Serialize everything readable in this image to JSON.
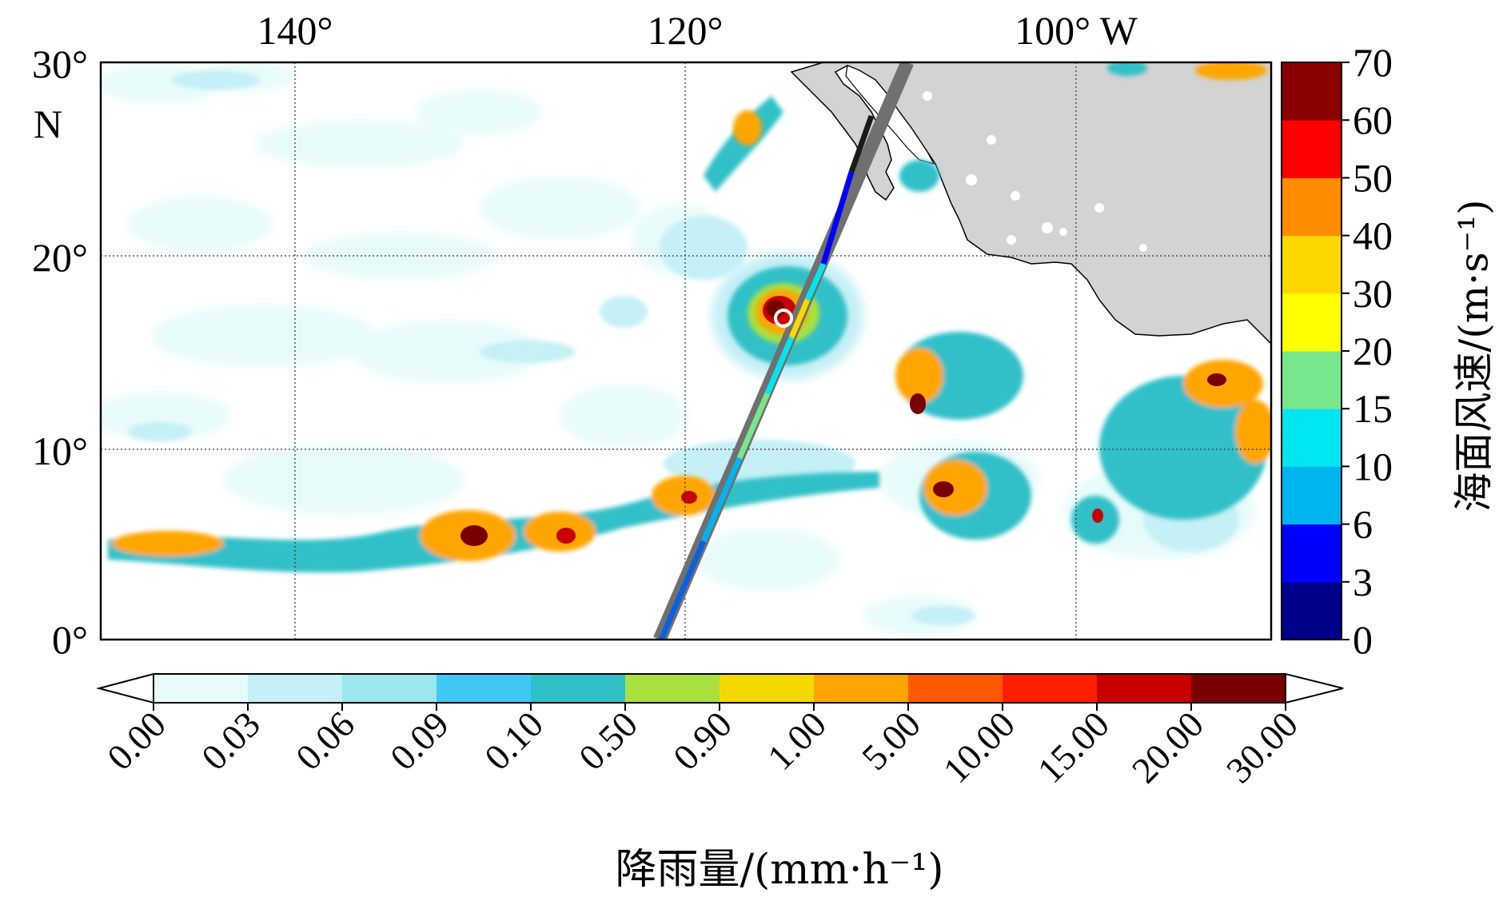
{
  "map": {
    "lon_labels": [
      "140°",
      "120°",
      "100° W"
    ],
    "lat_labels": [
      "30°",
      "N",
      "20°",
      "10°",
      "0°"
    ],
    "land_color": "#d3d3d3",
    "ocean_color": "#ffffff",
    "track_color": "#707070",
    "storm_center_marker": "white-circle"
  },
  "wind_colorbar": {
    "ticks": [
      "70",
      "60",
      "50",
      "40",
      "30",
      "20",
      "15",
      "10",
      "6",
      "3",
      "0"
    ],
    "colors": [
      "#00008b",
      "#0000ff",
      "#00b4f0",
      "#00e6f0",
      "#78e68c",
      "#ffff00",
      "#ffd700",
      "#ff8c00",
      "#ff0000",
      "#8b0000"
    ],
    "label": "海面风速/(m·s⁻¹)"
  },
  "rain_colorbar": {
    "ticks": [
      "0.00",
      "0.03",
      "0.06",
      "0.09",
      "0.10",
      "0.50",
      "0.90",
      "1.00",
      "5.00",
      "10.00",
      "15.00",
      "20.00",
      "30.00"
    ],
    "colors": [
      "#e8fbfb",
      "#c5f0f5",
      "#9ae8ee",
      "#40c8f5",
      "#30c0c8",
      "#a8e040",
      "#f5d800",
      "#ffa500",
      "#ff5a00",
      "#ff1e00",
      "#c80000",
      "#7a0000"
    ],
    "label": "降雨量/(mm·h⁻¹)"
  }
}
